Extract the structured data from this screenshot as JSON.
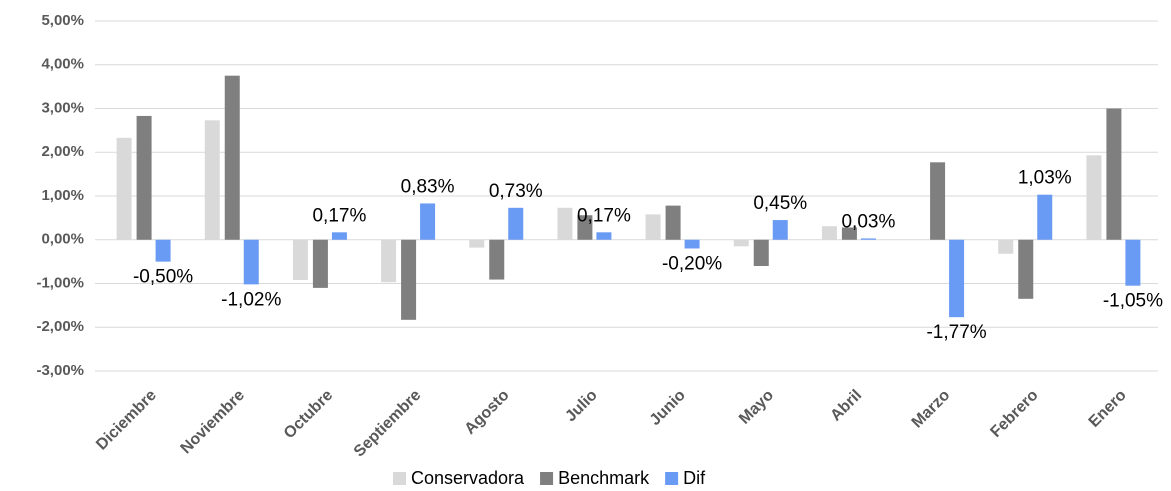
{
  "chart_data": {
    "type": "bar",
    "categories": [
      "Diciembre",
      "Noviembre",
      "Octubre",
      "Septiembre",
      "Agosto",
      "Julio",
      "Junio",
      "Mayo",
      "Abril",
      "Marzo",
      "Febrero",
      "Enero"
    ],
    "series": [
      {
        "name": "Conservadora",
        "color": "#d9d9d9",
        "values": [
          2.33,
          2.73,
          -0.92,
          -0.97,
          -0.18,
          0.73,
          0.58,
          -0.15,
          0.31,
          0,
          -0.32,
          1.93
        ]
      },
      {
        "name": "Benchmark",
        "color": "#7f7f7f",
        "values": [
          2.83,
          3.75,
          -1.1,
          -1.83,
          -0.91,
          0.56,
          0.78,
          -0.6,
          0.28,
          1.77,
          -1.35,
          3.0
        ]
      },
      {
        "name": "Dif",
        "color": "#6a9bf4",
        "values": [
          -0.5,
          -1.02,
          0.17,
          0.83,
          0.73,
          0.17,
          -0.2,
          0.45,
          0.03,
          -1.77,
          1.03,
          -1.05
        ],
        "value_labels": [
          "-0,50%",
          "-1,02%",
          "0,17%",
          "0,83%",
          "0,73%",
          "0,17%",
          "-0,20%",
          "0,45%",
          "0,03%",
          "-1,77%",
          "1,03%",
          "-1,05%"
        ]
      }
    ],
    "ylim": [
      -3,
      5
    ],
    "yticks": [
      {
        "value": -3,
        "label": "-3,00%"
      },
      {
        "value": -2,
        "label": "-2,00%"
      },
      {
        "value": -1,
        "label": "-1,00%"
      },
      {
        "value": 0,
        "label": "0,00%"
      },
      {
        "value": 1,
        "label": "1,00%"
      },
      {
        "value": 2,
        "label": "2,00%"
      },
      {
        "value": 3,
        "label": "3,00%"
      },
      {
        "value": 4,
        "label": "4,00%"
      },
      {
        "value": 5,
        "label": "5,00%"
      }
    ],
    "grid": true,
    "legend": "bottom"
  }
}
